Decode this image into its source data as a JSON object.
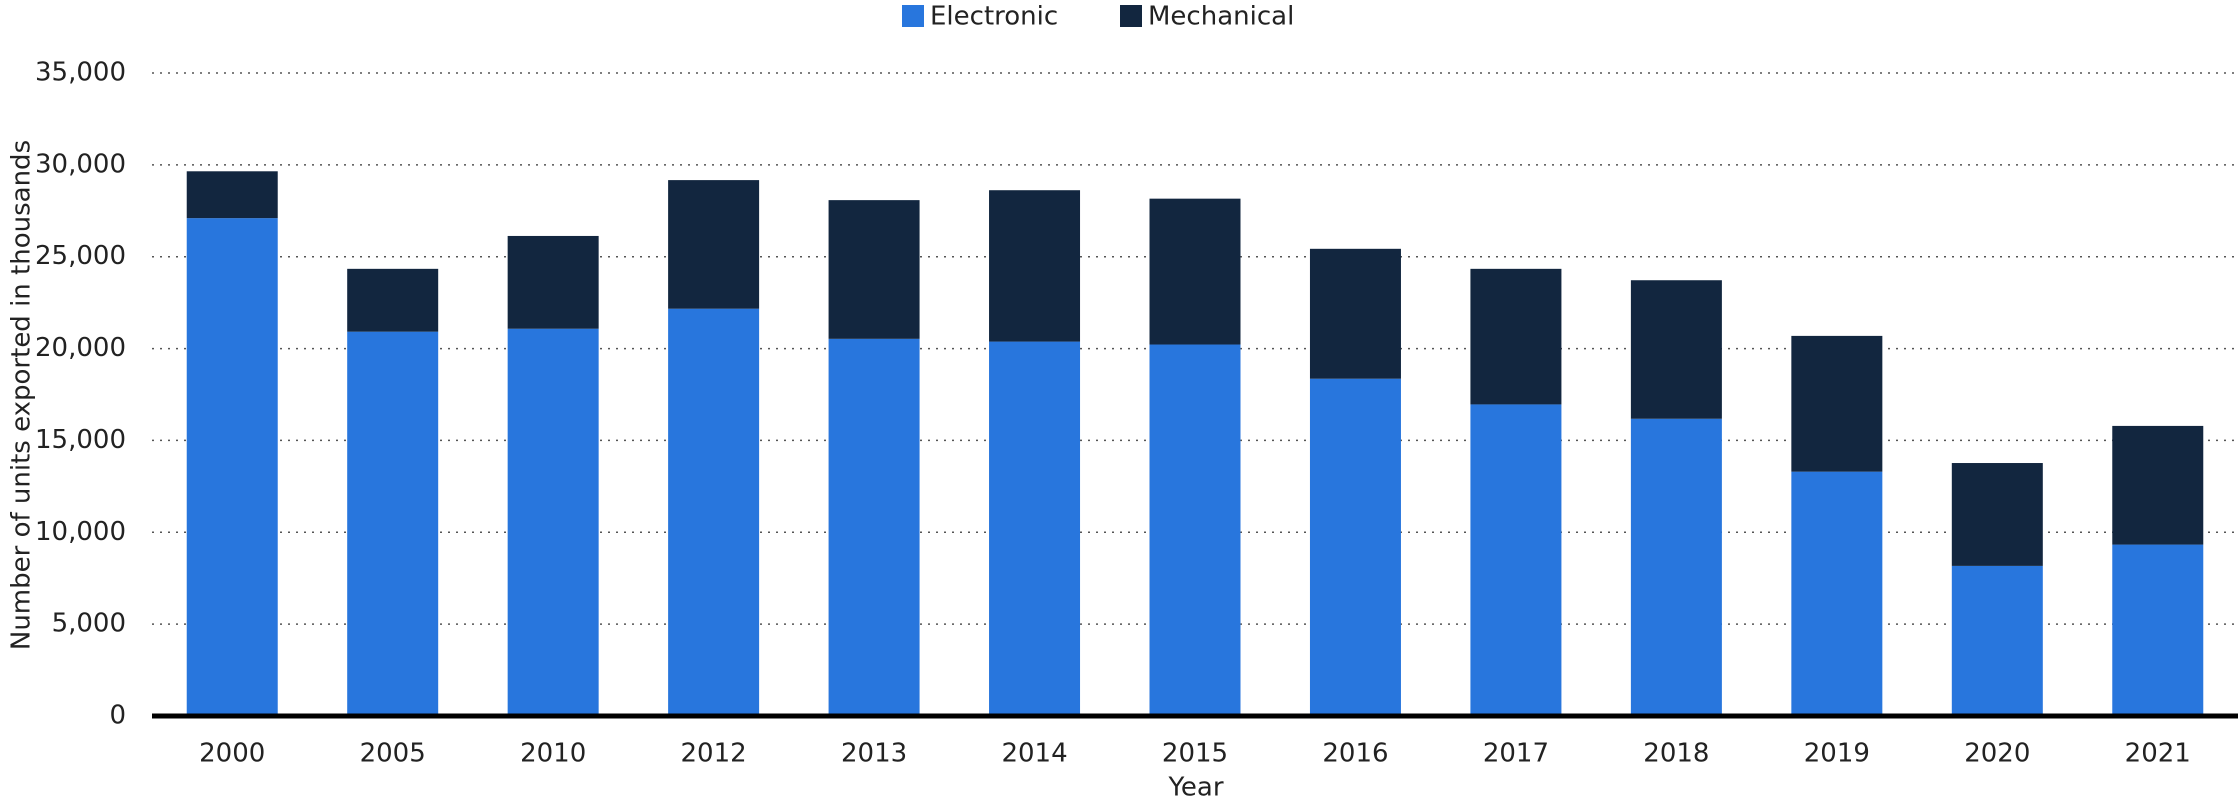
{
  "chart_data": {
    "type": "stacked_bar",
    "x_label": "Year",
    "y_label": "Number of units exported in thousands",
    "categories": [
      "2000",
      "2005",
      "2010",
      "2012",
      "2013",
      "2014",
      "2015",
      "2016",
      "2017",
      "2018",
      "2019",
      "2020",
      "2021"
    ],
    "series": [
      {
        "name": "Electronic",
        "color": "#2876dd",
        "values": [
          27100,
          20920,
          21080,
          22170,
          20530,
          20380,
          20220,
          18360,
          16960,
          16180,
          13300,
          8170,
          9330
        ]
      },
      {
        "name": "Mechanical",
        "color": "#12263f",
        "values": [
          2550,
          3420,
          5050,
          7000,
          7550,
          8240,
          7940,
          7070,
          7380,
          7540,
          7390,
          5600,
          6460
        ]
      }
    ],
    "ylim": [
      0,
      35000
    ],
    "yticks": [
      0,
      {
        "value": 5000,
        "label": "5,000"
      },
      {
        "value": 10000,
        "label": "10,000"
      },
      {
        "value": 15000,
        "label": "15,000"
      },
      {
        "value": 20000,
        "label": "20,000"
      },
      {
        "value": 25000,
        "label": "25,000"
      },
      {
        "value": 30000,
        "label": "30,000"
      },
      {
        "value": 35000,
        "label": "35,000"
      }
    ],
    "grid": true,
    "legend": "top"
  }
}
